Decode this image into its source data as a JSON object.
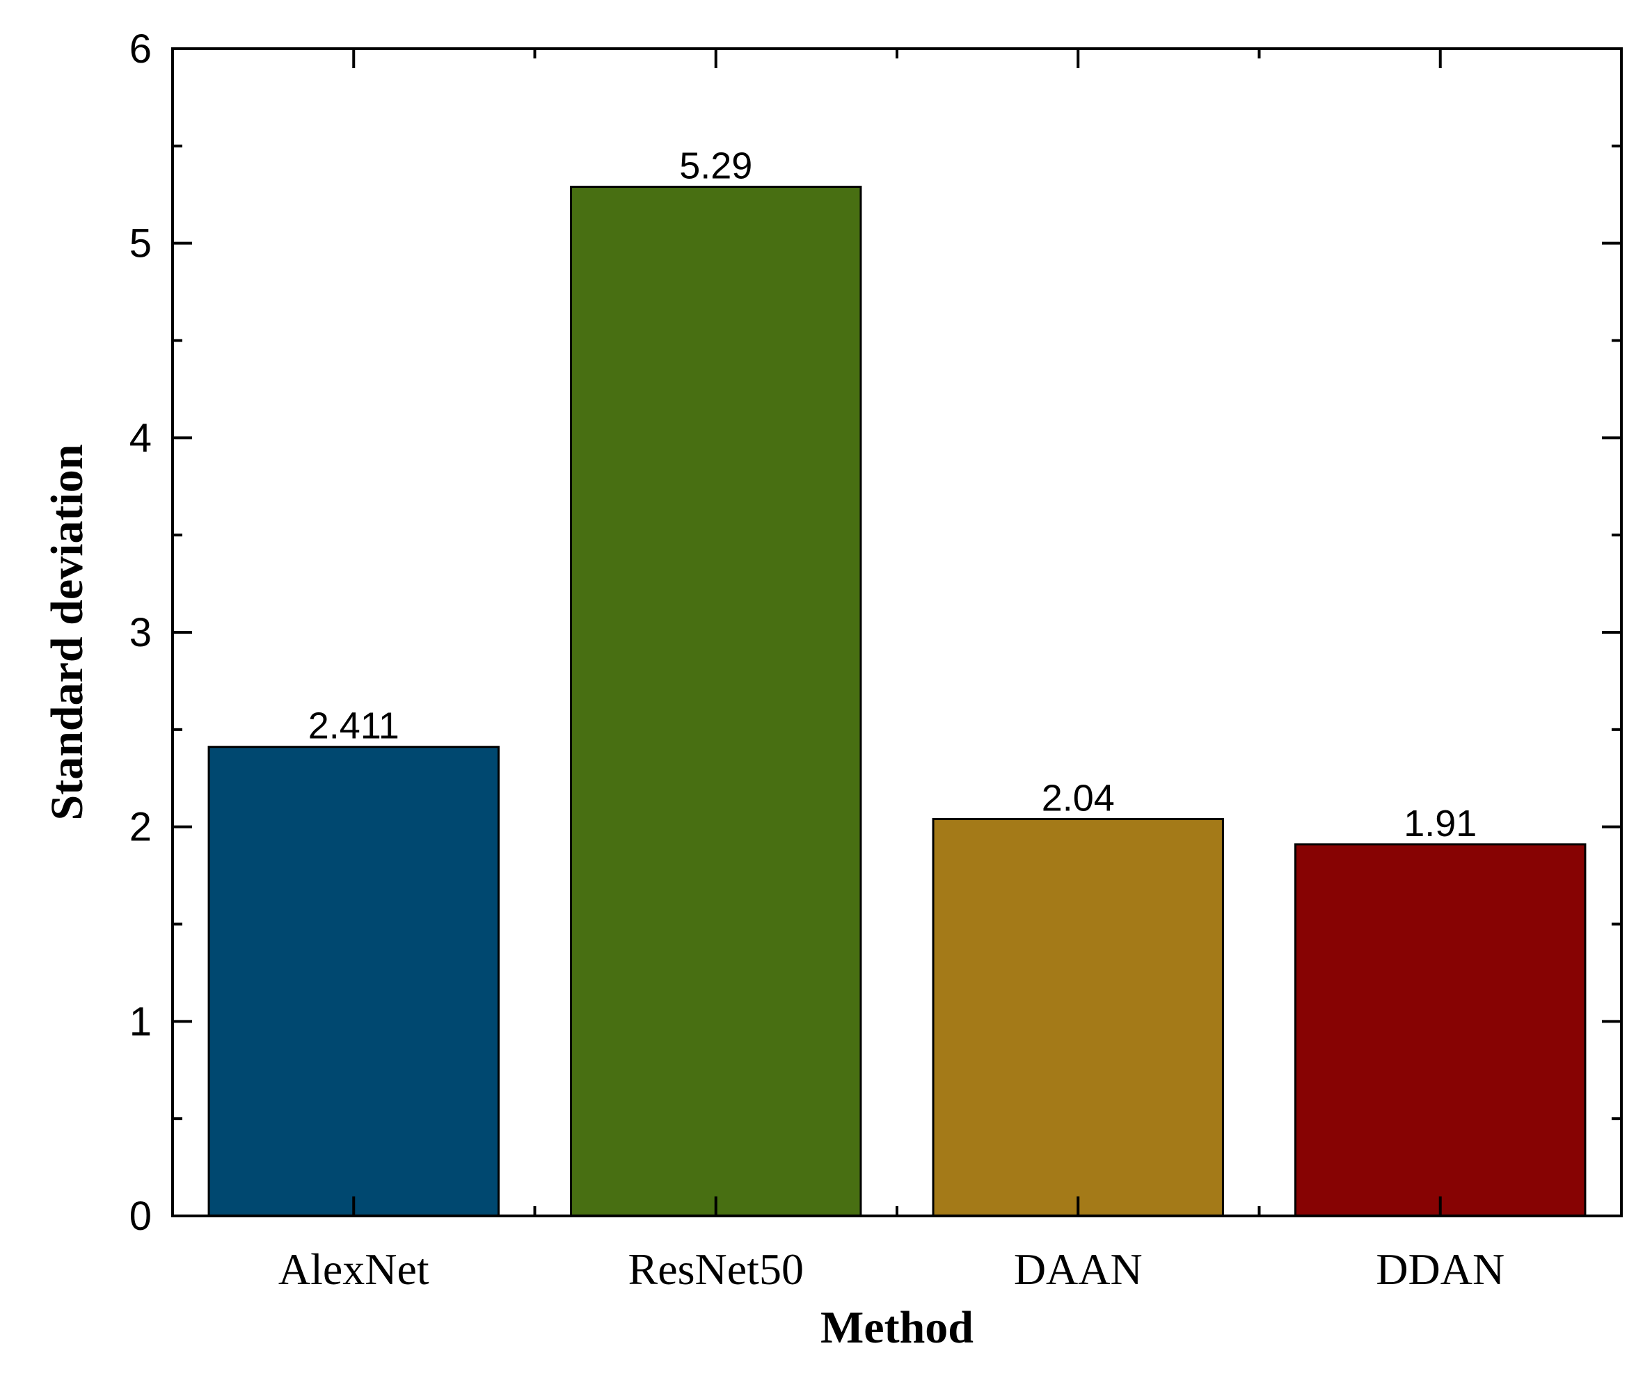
{
  "chart_data": {
    "type": "bar",
    "title": "",
    "xlabel": "Method",
    "ylabel": "Standard deviation",
    "categories": [
      "AlexNet",
      "ResNet50",
      "DAAN",
      "DDAN"
    ],
    "values": [
      2.411,
      5.29,
      2.04,
      1.91
    ],
    "data_labels": [
      "2.411",
      "5.29",
      "2.04",
      "1.91"
    ],
    "colors": [
      "#004870",
      "#486F12",
      "#A47A18",
      "#870303"
    ],
    "ylim": [
      0,
      6
    ],
    "yticks": [
      0,
      1,
      2,
      3,
      4,
      5,
      6
    ],
    "grid": false,
    "legend": "none"
  }
}
